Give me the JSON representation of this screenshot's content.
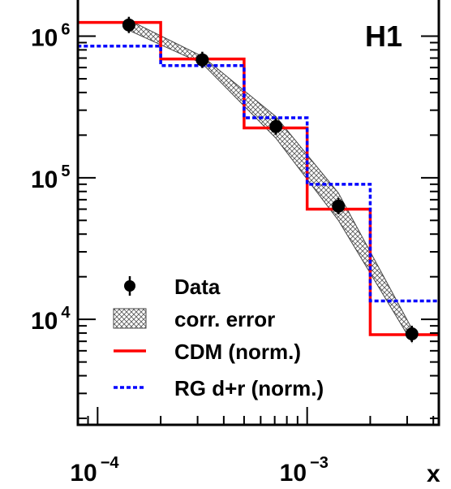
{
  "chart_data": {
    "type": "histogram",
    "label": "H1",
    "x_scale": "log",
    "y_scale": "log",
    "x_range": [
      8.05e-05,
      0.00425
    ],
    "y_range": [
      1800,
      1800000
    ],
    "x_ticks": [
      {
        "value": 0.0001,
        "base": "10",
        "exponent": "−4"
      },
      {
        "value": 0.001,
        "base": "10",
        "exponent": "−3"
      }
    ],
    "x_axis_label_partial": "x",
    "y_ticks": [
      {
        "value": 10000,
        "base": "10",
        "exponent": "4"
      },
      {
        "value": 100000,
        "base": "10",
        "exponent": "5"
      },
      {
        "value": 1000000,
        "base": "10",
        "exponent": "6"
      }
    ],
    "bin_edges": [
      8e-05,
      0.0002,
      0.0005,
      0.001,
      0.002,
      0.0042
    ],
    "data": {
      "name": "Data",
      "color": "#000000",
      "x": [
        0.000141,
        0.000316,
        0.00071,
        0.00141,
        0.00316
      ],
      "y": [
        1200000,
        680000,
        230000,
        63000,
        7900
      ]
    },
    "corr_error_band": {
      "name": "corr. error",
      "x": [
        0.000141,
        0.000316,
        0.00071,
        0.00141,
        0.00316
      ],
      "upper": [
        1300000,
        720000,
        270000,
        78000,
        8600
      ],
      "lower": [
        1100000,
        640000,
        190000,
        50000,
        6900
      ]
    },
    "series": [
      {
        "name": "CDM (norm.)",
        "style": "solid",
        "color": "#ff0000",
        "values": [
          1250000,
          690000,
          225000,
          60000,
          7800
        ]
      },
      {
        "name": "RG d+r (norm.)",
        "style": "dotted",
        "color": "#0000ff",
        "values": [
          850000,
          620000,
          265000,
          90000,
          13500
        ]
      }
    ],
    "legend": {
      "placement": "bottom-left",
      "entries": [
        {
          "label": "Data",
          "symbol": "marker"
        },
        {
          "label": "corr. error",
          "symbol": "hatch"
        },
        {
          "label": "CDM (norm.)",
          "symbol": "red-line"
        },
        {
          "label": "RG d+r (norm.)",
          "symbol": "blue-dotted-line"
        }
      ]
    }
  }
}
